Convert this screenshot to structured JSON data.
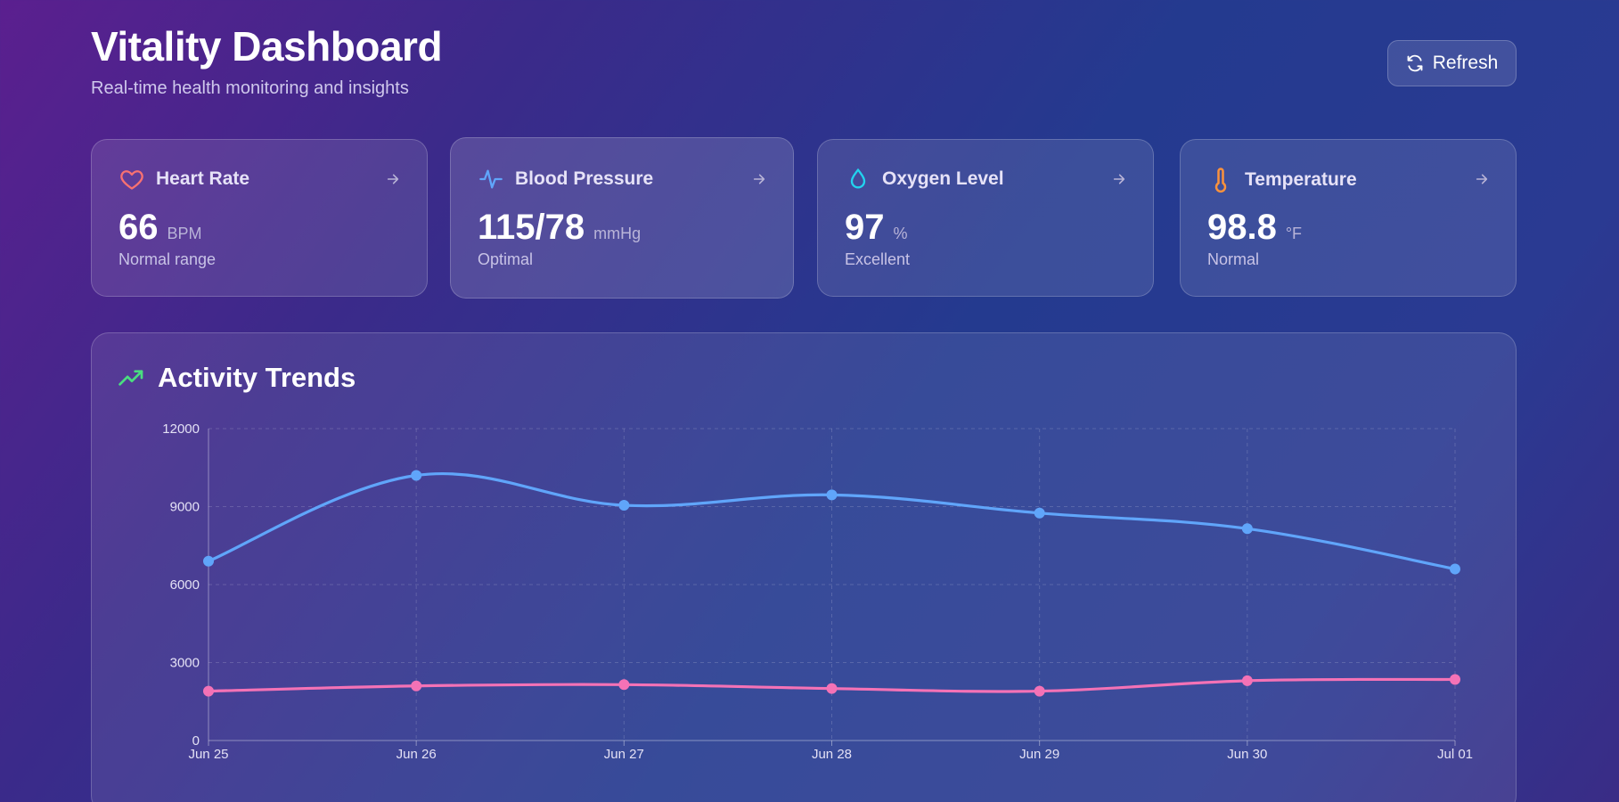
{
  "header": {
    "title": "Vitality Dashboard",
    "subtitle": "Real-time health monitoring and insights",
    "refresh_label": "Refresh",
    "refresh_icon": "refresh-icon"
  },
  "cards": [
    {
      "label": "Heart Rate",
      "value": "66",
      "unit": "BPM",
      "status": "Normal range",
      "icon": "heart-icon",
      "color": "#f87171"
    },
    {
      "label": "Blood Pressure",
      "value": "115/78",
      "unit": "mmHg",
      "status": "Optimal",
      "icon": "pulse-icon",
      "color": "#60a5fa"
    },
    {
      "label": "Oxygen Level",
      "value": "97",
      "unit": "%",
      "status": "Excellent",
      "icon": "droplet-icon",
      "color": "#22d3ee"
    },
    {
      "label": "Temperature",
      "value": "98.8",
      "unit": "°F",
      "status": "Normal",
      "icon": "thermometer-icon",
      "color": "#fb923c"
    }
  ],
  "chart_section": {
    "title": "Activity Trends",
    "icon": "trending-up-icon",
    "icon_color": "#4ade80"
  },
  "chart_data": {
    "type": "line",
    "categories": [
      "Jun 25",
      "Jun 26",
      "Jun 27",
      "Jun 28",
      "Jun 29",
      "Jun 30",
      "Jul 01"
    ],
    "series": [
      {
        "color": "#60a5fa",
        "values": [
          6900,
          10200,
          9050,
          9450,
          8750,
          8150,
          6600
        ]
      },
      {
        "color": "#f472b6",
        "values": [
          1900,
          2100,
          2150,
          2000,
          1900,
          2300,
          2350
        ]
      }
    ],
    "ylim": [
      0,
      12000
    ],
    "yticks": [
      0,
      3000,
      6000,
      9000,
      12000
    ],
    "grid": true,
    "smooth": true
  }
}
